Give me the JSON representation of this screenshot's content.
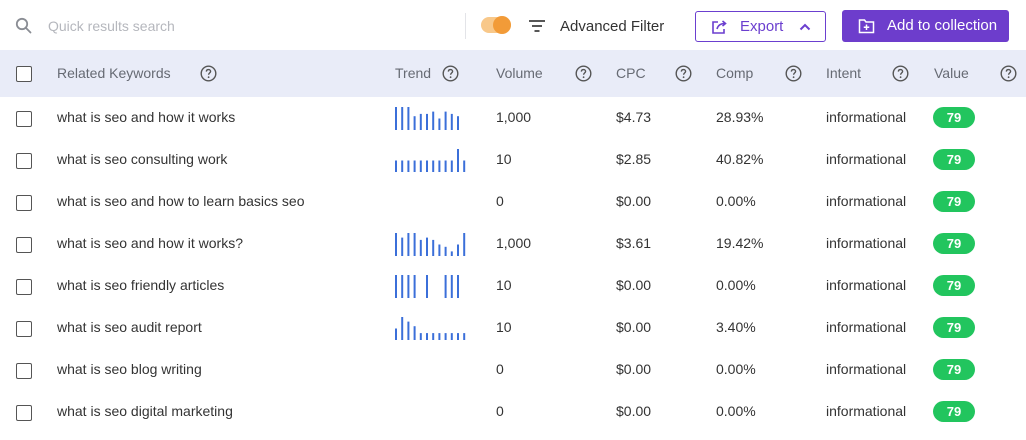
{
  "search": {
    "placeholder": "Quick results search",
    "value": ""
  },
  "toggle": {
    "on": true,
    "color": "#f29b38"
  },
  "toolbar": {
    "filter_label": "Advanced Filter",
    "export_label": "Export",
    "collection_label": "Add to collection"
  },
  "colors": {
    "accent": "#6d3dcc",
    "badge": "#22c55e",
    "spark": "#3b6fd9",
    "header_bg": "#e9ecf8"
  },
  "columns": {
    "keyword": "Related Keywords",
    "trend": "Trend",
    "volume": "Volume",
    "cpc": "CPC",
    "comp": "Comp",
    "intent": "Intent",
    "value": "Value"
  },
  "rows": [
    {
      "keyword": "what is seo and how it works",
      "trend": [
        1,
        1,
        1,
        0.6,
        0.7,
        0.7,
        0.8,
        0.5,
        0.8,
        0.7,
        0.6
      ],
      "volume": "1,000",
      "cpc": "$4.73",
      "comp": "28.93%",
      "intent": "informational",
      "value": "79"
    },
    {
      "keyword": "what is seo consulting work",
      "trend": [
        0.5,
        0.5,
        0.5,
        0.5,
        0.5,
        0.5,
        0.5,
        0.5,
        0.5,
        0.5,
        1,
        0.5,
        0.5
      ],
      "volume": "10",
      "cpc": "$2.85",
      "comp": "40.82%",
      "intent": "informational",
      "value": "79"
    },
    {
      "keyword": "what is seo and how to learn basics seo",
      "trend": [],
      "volume": "0",
      "cpc": "$0.00",
      "comp": "0.00%",
      "intent": "informational",
      "value": "79"
    },
    {
      "keyword": "what is seo and how it works?",
      "trend": [
        1,
        0.8,
        1,
        1,
        0.7,
        0.8,
        0.7,
        0.5,
        0.4,
        0.2,
        0.5,
        1
      ],
      "volume": "1,000",
      "cpc": "$3.61",
      "comp": "19.42%",
      "intent": "informational",
      "value": "79"
    },
    {
      "keyword": "what is seo friendly articles",
      "trend": [
        1,
        1,
        1,
        1,
        0,
        1,
        0,
        0,
        1,
        1,
        1
      ],
      "volume": "10",
      "cpc": "$0.00",
      "comp": "0.00%",
      "intent": "informational",
      "value": "79"
    },
    {
      "keyword": "what is seo audit report",
      "trend": [
        0.5,
        1,
        0.8,
        0.6,
        0.3,
        0.3,
        0.3,
        0.3,
        0.3,
        0.3,
        0.3,
        0.3,
        0.3,
        0.3
      ],
      "volume": "10",
      "cpc": "$0.00",
      "comp": "3.40%",
      "intent": "informational",
      "value": "79"
    },
    {
      "keyword": "what is seo blog writing",
      "trend": [],
      "volume": "0",
      "cpc": "$0.00",
      "comp": "0.00%",
      "intent": "informational",
      "value": "79"
    },
    {
      "keyword": "what is seo digital marketing",
      "trend": [],
      "volume": "0",
      "cpc": "$0.00",
      "comp": "0.00%",
      "intent": "informational",
      "value": "79"
    }
  ]
}
